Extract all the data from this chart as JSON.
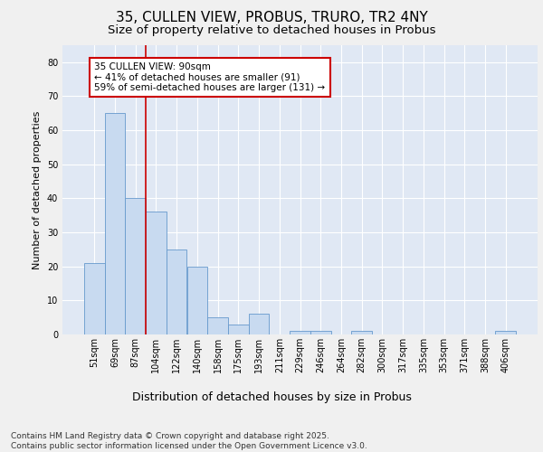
{
  "title": "35, CULLEN VIEW, PROBUS, TRURO, TR2 4NY",
  "subtitle": "Size of property relative to detached houses in Probus",
  "xlabel": "Distribution of detached houses by size in Probus",
  "ylabel": "Number of detached properties",
  "categories": [
    "51sqm",
    "69sqm",
    "87sqm",
    "104sqm",
    "122sqm",
    "140sqm",
    "158sqm",
    "175sqm",
    "193sqm",
    "211sqm",
    "229sqm",
    "246sqm",
    "264sqm",
    "282sqm",
    "300sqm",
    "317sqm",
    "335sqm",
    "353sqm",
    "371sqm",
    "388sqm",
    "406sqm"
  ],
  "values": [
    21,
    65,
    40,
    36,
    25,
    20,
    5,
    3,
    6,
    0,
    1,
    1,
    0,
    1,
    0,
    0,
    0,
    0,
    0,
    0,
    1
  ],
  "bar_color": "#c8daf0",
  "bar_edge_color": "#6699cc",
  "vline_x": 2.5,
  "vline_color": "#cc0000",
  "annotation_text": "35 CULLEN VIEW: 90sqm\n← 41% of detached houses are smaller (91)\n59% of semi-detached houses are larger (131) →",
  "annotation_box_facecolor": "#ffffff",
  "annotation_box_edgecolor": "#cc0000",
  "ylim": [
    0,
    85
  ],
  "yticks": [
    0,
    10,
    20,
    30,
    40,
    50,
    60,
    70,
    80
  ],
  "background_color": "#f0f0f0",
  "plot_background_color": "#e0e8f4",
  "grid_color": "#ffffff",
  "footer_text": "Contains HM Land Registry data © Crown copyright and database right 2025.\nContains public sector information licensed under the Open Government Licence v3.0.",
  "title_fontsize": 11,
  "subtitle_fontsize": 9.5,
  "xlabel_fontsize": 9,
  "ylabel_fontsize": 8,
  "tick_fontsize": 7,
  "annotation_fontsize": 7.5,
  "footer_fontsize": 6.5
}
